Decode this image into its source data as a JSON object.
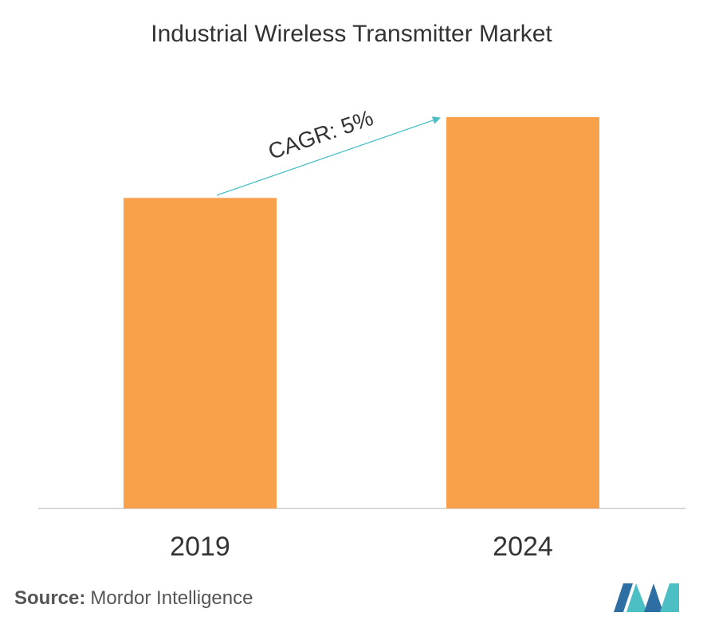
{
  "chart_data": {
    "type": "bar",
    "title": "Industrial Wireless Transmitter Market",
    "categories": [
      "2019",
      "2024"
    ],
    "values": [
      100,
      126
    ],
    "color": "#f9a04a",
    "annotation": "CAGR: 5%",
    "source_label": "Source:",
    "source_name": "Mordor Intelligence"
  }
}
